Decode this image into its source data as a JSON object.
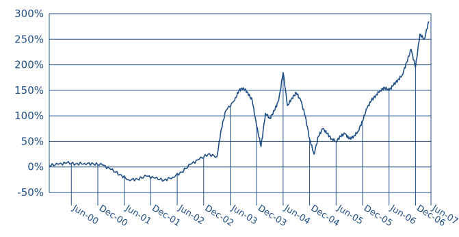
{
  "chart_data": {
    "type": "line",
    "title": "",
    "xlabel": "",
    "ylabel": "",
    "x_tick_labels": [
      "Jun-00",
      "Dec-00",
      "Jun-01",
      "Dec-01",
      "Jun-02",
      "Dec-02",
      "Jun-03",
      "Dec-03",
      "Jun-04",
      "Dec-04",
      "Jun-05",
      "Dec-05",
      "Jun-06",
      "Dec-06",
      "Jun-07"
    ],
    "y_tick_labels": [
      "300%",
      "250%",
      "200%",
      "150%",
      "100%",
      "50%",
      "0%",
      "-50%"
    ],
    "y_tick_values": [
      300,
      250,
      200,
      150,
      100,
      50,
      0,
      -50
    ],
    "ylim": [
      -50,
      300
    ],
    "grid": "horizontal",
    "line_color": "#1f4f86",
    "series": [
      {
        "x": [
          "Jan-00",
          "Mar-00",
          "May-00",
          "Jul-00",
          "Sep-00",
          "Nov-00",
          "Jan-01",
          "Mar-01",
          "May-01",
          "Jul-01",
          "Sep-01",
          "Nov-01",
          "Jan-02",
          "Mar-02",
          "May-02",
          "Jul-02",
          "Sep-02",
          "Nov-02",
          "Jan-03",
          "Mar-03",
          "Apr-03",
          "May-03",
          "Jul-03",
          "Aug-03",
          "Sep-03",
          "Oct-03",
          "Nov-03",
          "Dec-03",
          "Jan-04",
          "Feb-04",
          "Mar-04",
          "Apr-04",
          "May-04",
          "Jun-04",
          "Jul-04",
          "Aug-04",
          "Sep-04",
          "Oct-04",
          "Nov-04",
          "Dec-04",
          "Jan-05",
          "Feb-05",
          "Mar-05",
          "Apr-05",
          "May-05",
          "Jun-05",
          "Jul-05",
          "Aug-05",
          "Sep-05",
          "Oct-05",
          "Nov-05",
          "Dec-05",
          "Jan-06",
          "Feb-06",
          "Mar-06",
          "Apr-06",
          "May-06",
          "Jun-06",
          "Jul-06",
          "Aug-06",
          "Sep-06",
          "Oct-06",
          "Nov-06",
          "Dec-06",
          "Jan-07",
          "Feb-07",
          "Mar-07"
        ],
        "values": [
          3,
          5,
          8,
          6,
          7,
          6,
          4,
          -5,
          -15,
          -25,
          -24,
          -18,
          -22,
          -26,
          -20,
          -10,
          5,
          15,
          25,
          20,
          75,
          110,
          130,
          150,
          155,
          145,
          130,
          80,
          40,
          105,
          95,
          110,
          130,
          185,
          120,
          135,
          145,
          130,
          100,
          55,
          25,
          60,
          75,
          65,
          55,
          50,
          60,
          65,
          55,
          60,
          70,
          90,
          115,
          130,
          140,
          150,
          155,
          150,
          160,
          170,
          180,
          205,
          230,
          195,
          260,
          250,
          285
        ]
      }
    ]
  }
}
